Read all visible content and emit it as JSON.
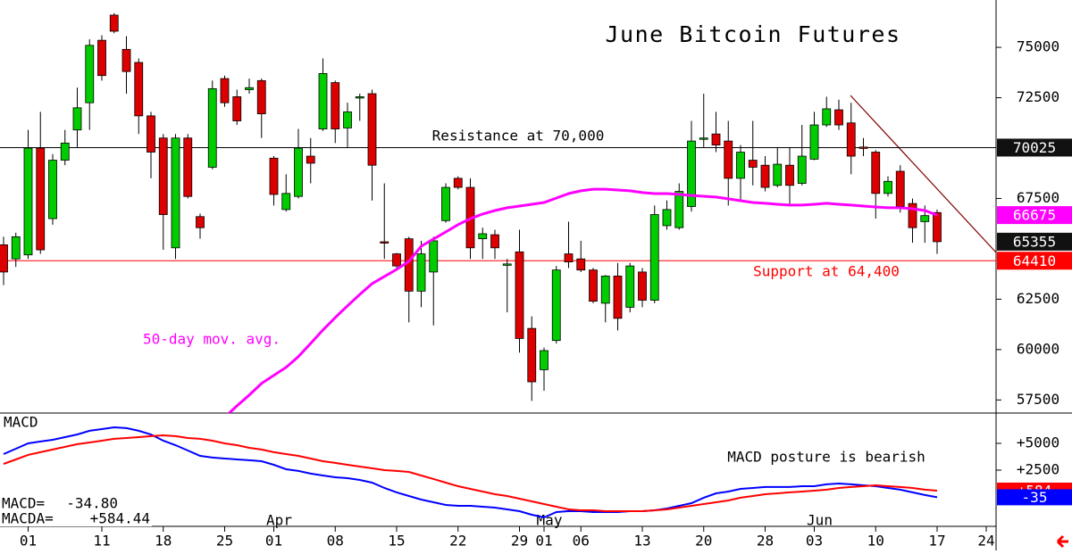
{
  "chart_data": [
    {
      "type": "candlestick",
      "title": "June Bitcoin Futures",
      "categories": [
        null,
        null,
        "01",
        null,
        null,
        null,
        null,
        null,
        "11",
        null,
        null,
        null,
        null,
        "18",
        null,
        null,
        null,
        null,
        "25",
        null,
        null,
        null,
        "01",
        null,
        null,
        null,
        null,
        "08",
        null,
        null,
        null,
        null,
        "15",
        null,
        null,
        null,
        null,
        "22",
        null,
        null,
        null,
        null,
        "29",
        null,
        "01",
        null,
        null,
        "06",
        null,
        null,
        null,
        null,
        "13",
        null,
        null,
        null,
        null,
        "20",
        null,
        null,
        null,
        null,
        "28",
        null,
        null,
        null,
        "03",
        null,
        null,
        null,
        null,
        "10",
        null,
        null,
        null,
        null,
        "17",
        null,
        null,
        null,
        "24"
      ],
      "months": [
        null,
        null,
        null,
        null,
        null,
        null,
        null,
        null,
        null,
        null,
        null,
        null,
        null,
        null,
        null,
        null,
        null,
        null,
        null,
        null,
        null,
        null,
        "Apr",
        null,
        null,
        null,
        null,
        null,
        null,
        null,
        null,
        null,
        null,
        null,
        null,
        null,
        null,
        null,
        null,
        null,
        null,
        null,
        null,
        null,
        "May",
        null,
        null,
        null,
        null,
        null,
        null,
        null,
        null,
        null,
        null,
        null,
        null,
        null,
        null,
        null,
        null,
        null,
        null,
        null,
        null,
        null,
        "Jun",
        null,
        null,
        null,
        null,
        null,
        null,
        null,
        null,
        null,
        null,
        null,
        null,
        null,
        null
      ],
      "open": [
        65200,
        64500,
        64700,
        70000,
        66500,
        69400,
        70900,
        72250,
        75350,
        76600,
        74900,
        74250,
        71600,
        70500,
        65050,
        70500,
        66600,
        69050,
        73450,
        72550,
        72900,
        73350,
        69500,
        66950,
        67600,
        69600,
        70950,
        73250,
        71000,
        72500,
        72700,
        65350,
        64750,
        65500,
        62900,
        63850,
        66400,
        68500,
        68050,
        65500,
        65700,
        64200,
        64850,
        61050,
        59000,
        60450,
        64750,
        64500,
        63950,
        62300,
        63650,
        62100,
        63850,
        62450,
        66150,
        66050,
        67100,
        70450,
        70700,
        70350,
        68500,
        69400,
        69150,
        68150,
        69150,
        68250,
        69450,
        71150,
        71900,
        71250,
        70050,
        69800,
        67750,
        68850,
        67250,
        66350,
        66800,
        null,
        null,
        null,
        null
      ],
      "high": [
        65600,
        65800,
        70900,
        71800,
        69700,
        70900,
        73000,
        75400,
        75600,
        76700,
        75550,
        74450,
        71800,
        70700,
        70700,
        70700,
        66750,
        73350,
        73600,
        72900,
        73450,
        73450,
        69600,
        68700,
        70950,
        70500,
        74450,
        73350,
        72250,
        72700,
        72900,
        68250,
        64800,
        65600,
        65400,
        65600,
        68250,
        68600,
        68500,
        66050,
        65950,
        64500,
        65950,
        61650,
        60100,
        64150,
        66350,
        65400,
        64050,
        63700,
        64300,
        64300,
        64050,
        67150,
        67400,
        68250,
        71350,
        72700,
        71800,
        71350,
        70150,
        71350,
        69600,
        70050,
        70050,
        71150,
        71800,
        72550,
        72400,
        72250,
        70500,
        69900,
        68600,
        69150,
        67500,
        67150,
        66950,
        null,
        null,
        null,
        null
      ],
      "low": [
        63200,
        64100,
        64500,
        64750,
        66200,
        69150,
        70050,
        70900,
        73350,
        75700,
        72700,
        70700,
        68500,
        64950,
        64500,
        67500,
        65500,
        68950,
        72050,
        71150,
        72700,
        70500,
        67150,
        66850,
        67500,
        68250,
        70850,
        70250,
        70050,
        71350,
        67400,
        64500,
        64050,
        61350,
        62100,
        61200,
        66300,
        67950,
        64500,
        64500,
        64500,
        61850,
        59850,
        57450,
        57950,
        60300,
        64050,
        63850,
        62300,
        61350,
        60950,
        61850,
        62100,
        62300,
        65950,
        65950,
        66850,
        70050,
        69800,
        67150,
        67400,
        68150,
        67850,
        68050,
        67100,
        68150,
        69400,
        71050,
        70900,
        68700,
        69600,
        66500,
        67600,
        66800,
        65300,
        65300,
        64750,
        null,
        null,
        null,
        null
      ],
      "close": [
        63850,
        65600,
        70000,
        64950,
        69400,
        70250,
        72000,
        75100,
        73600,
        75800,
        73800,
        71600,
        69800,
        66700,
        70500,
        67600,
        66050,
        72950,
        72250,
        71350,
        73000,
        71700,
        67700,
        67750,
        70000,
        69250,
        73700,
        70950,
        71800,
        72550,
        69150,
        65300,
        64150,
        62900,
        64750,
        65400,
        68050,
        68050,
        65050,
        65750,
        65050,
        64250,
        60550,
        58400,
        59950,
        63950,
        64350,
        63950,
        62400,
        63650,
        61550,
        64150,
        62450,
        66700,
        66950,
        67850,
        70350,
        70500,
        70150,
        68500,
        69800,
        69050,
        68050,
        69200,
        68150,
        69600,
        71150,
        71950,
        71150,
        69600,
        70000,
        67750,
        68350,
        67100,
        66050,
        66650,
        65355,
        null,
        null,
        null,
        null
      ],
      "up_color": "#00cc00",
      "down_color": "#dd0000",
      "ma": {
        "label": "50-day mov. avg.",
        "color": "#ff00ff",
        "values": [
          null,
          null,
          null,
          null,
          null,
          null,
          null,
          null,
          null,
          null,
          null,
          null,
          null,
          null,
          null,
          null,
          null,
          null,
          56640,
          57210,
          57740,
          58320,
          58720,
          59120,
          59650,
          60310,
          60970,
          61590,
          62170,
          62740,
          63270,
          63630,
          63980,
          64380,
          65130,
          65490,
          65840,
          66200,
          66500,
          66730,
          66900,
          67040,
          67120,
          67210,
          67300,
          67520,
          67740,
          67880,
          67960,
          67960,
          67920,
          67880,
          67790,
          67740,
          67740,
          67700,
          67650,
          67610,
          67570,
          67480,
          67390,
          67300,
          67260,
          67210,
          67170,
          67170,
          67210,
          67260,
          67210,
          67170,
          67120,
          67080,
          67040,
          67040,
          66990,
          66900,
          66675,
          null,
          null,
          null,
          null
        ]
      },
      "levels": [
        {
          "label": "Resistance at 70,000",
          "value": 70025,
          "color": "#000000"
        },
        {
          "label": "Support at 64,400",
          "value": 64410,
          "color": "#ff0000"
        }
      ],
      "ylim": [
        56850,
        77350
      ],
      "yticks": [
        57500,
        60000,
        62500,
        67500,
        72500,
        75000
      ]
    },
    {
      "type": "line",
      "title": "MACD",
      "annotation": "MACD posture is bearish",
      "series": [
        {
          "name": "MACD=",
          "legend_value": "-34.80",
          "end_label": "-35",
          "color": "#0000ff",
          "values": [
            4000,
            4500,
            5000,
            5170,
            5330,
            5580,
            5830,
            6170,
            6330,
            6500,
            6420,
            6170,
            5830,
            5250,
            4830,
            4330,
            3830,
            3670,
            3580,
            3500,
            3420,
            3330,
            3000,
            2580,
            2420,
            2170,
            2000,
            1830,
            1750,
            1580,
            1330,
            830,
            420,
            80,
            -250,
            -500,
            -750,
            -830,
            -830,
            -920,
            -1000,
            -1170,
            -1330,
            -1670,
            -1920,
            -1420,
            -1330,
            -1330,
            -1420,
            -1420,
            -1420,
            -1330,
            -1330,
            -1250,
            -1080,
            -830,
            -580,
            -80,
            330,
            500,
            750,
            830,
            920,
            920,
            920,
            1000,
            1000,
            1170,
            1250,
            1170,
            1080,
            1000,
            830,
            670,
            420,
            170,
            -34.8,
            null,
            null,
            null,
            null
          ]
        },
        {
          "name": "MACDA=",
          "legend_value": "+584.44",
          "end_label": "+584",
          "color": "#ff0000",
          "values": [
            3080,
            3500,
            3920,
            4170,
            4420,
            4670,
            4920,
            5080,
            5250,
            5420,
            5500,
            5580,
            5670,
            5750,
            5670,
            5500,
            5420,
            5250,
            5000,
            4830,
            4580,
            4420,
            4170,
            4000,
            3830,
            3580,
            3330,
            3170,
            3000,
            2830,
            2670,
            2500,
            2420,
            2330,
            2000,
            1670,
            1330,
            1000,
            750,
            500,
            250,
            80,
            -170,
            -420,
            -670,
            -920,
            -1170,
            -1250,
            -1250,
            -1330,
            -1330,
            -1330,
            -1330,
            -1250,
            -1170,
            -1000,
            -830,
            -670,
            -500,
            -330,
            -80,
            80,
            250,
            330,
            420,
            500,
            580,
            670,
            830,
            920,
            1000,
            1080,
            1000,
            920,
            830,
            670,
            584.44,
            null,
            null,
            null,
            null
          ]
        }
      ],
      "ylim": [
        -2750,
        7830
      ],
      "yticks": [
        {
          "value": 2500,
          "label": "+2500"
        },
        {
          "value": 5000,
          "label": "+5000"
        }
      ]
    }
  ]
}
